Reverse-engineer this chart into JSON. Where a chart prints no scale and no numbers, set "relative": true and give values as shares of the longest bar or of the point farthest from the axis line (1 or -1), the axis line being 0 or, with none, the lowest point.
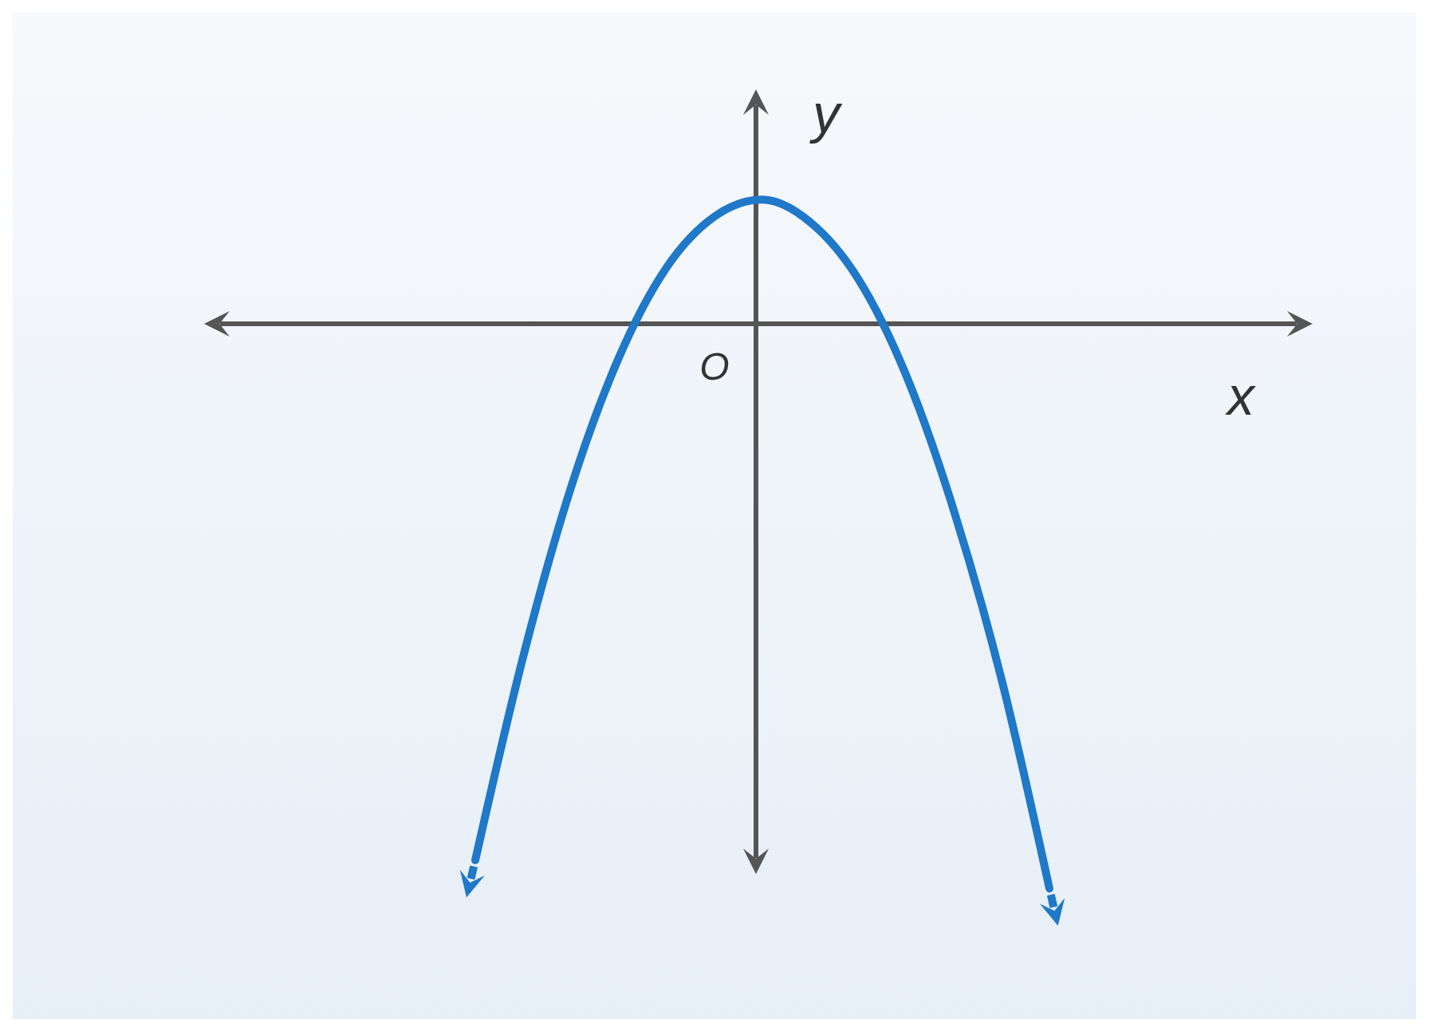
{
  "chart_data": {
    "type": "line",
    "relative": true,
    "xlabel": "x",
    "ylabel": "y",
    "annotations": [
      "O"
    ],
    "categories": [
      null,
      null,
      null,
      null,
      null,
      null,
      null,
      null,
      null,
      null,
      null,
      null,
      null
    ],
    "series": [
      {
        "color": "#1f78c8",
        "values": [
          -0.95,
          -0.59,
          -0.29,
          -0.06,
          0.1,
          0.19,
          0.22,
          0.18,
          0.08,
          -0.09,
          -0.33,
          -0.63,
          -1
        ]
      }
    ]
  }
}
